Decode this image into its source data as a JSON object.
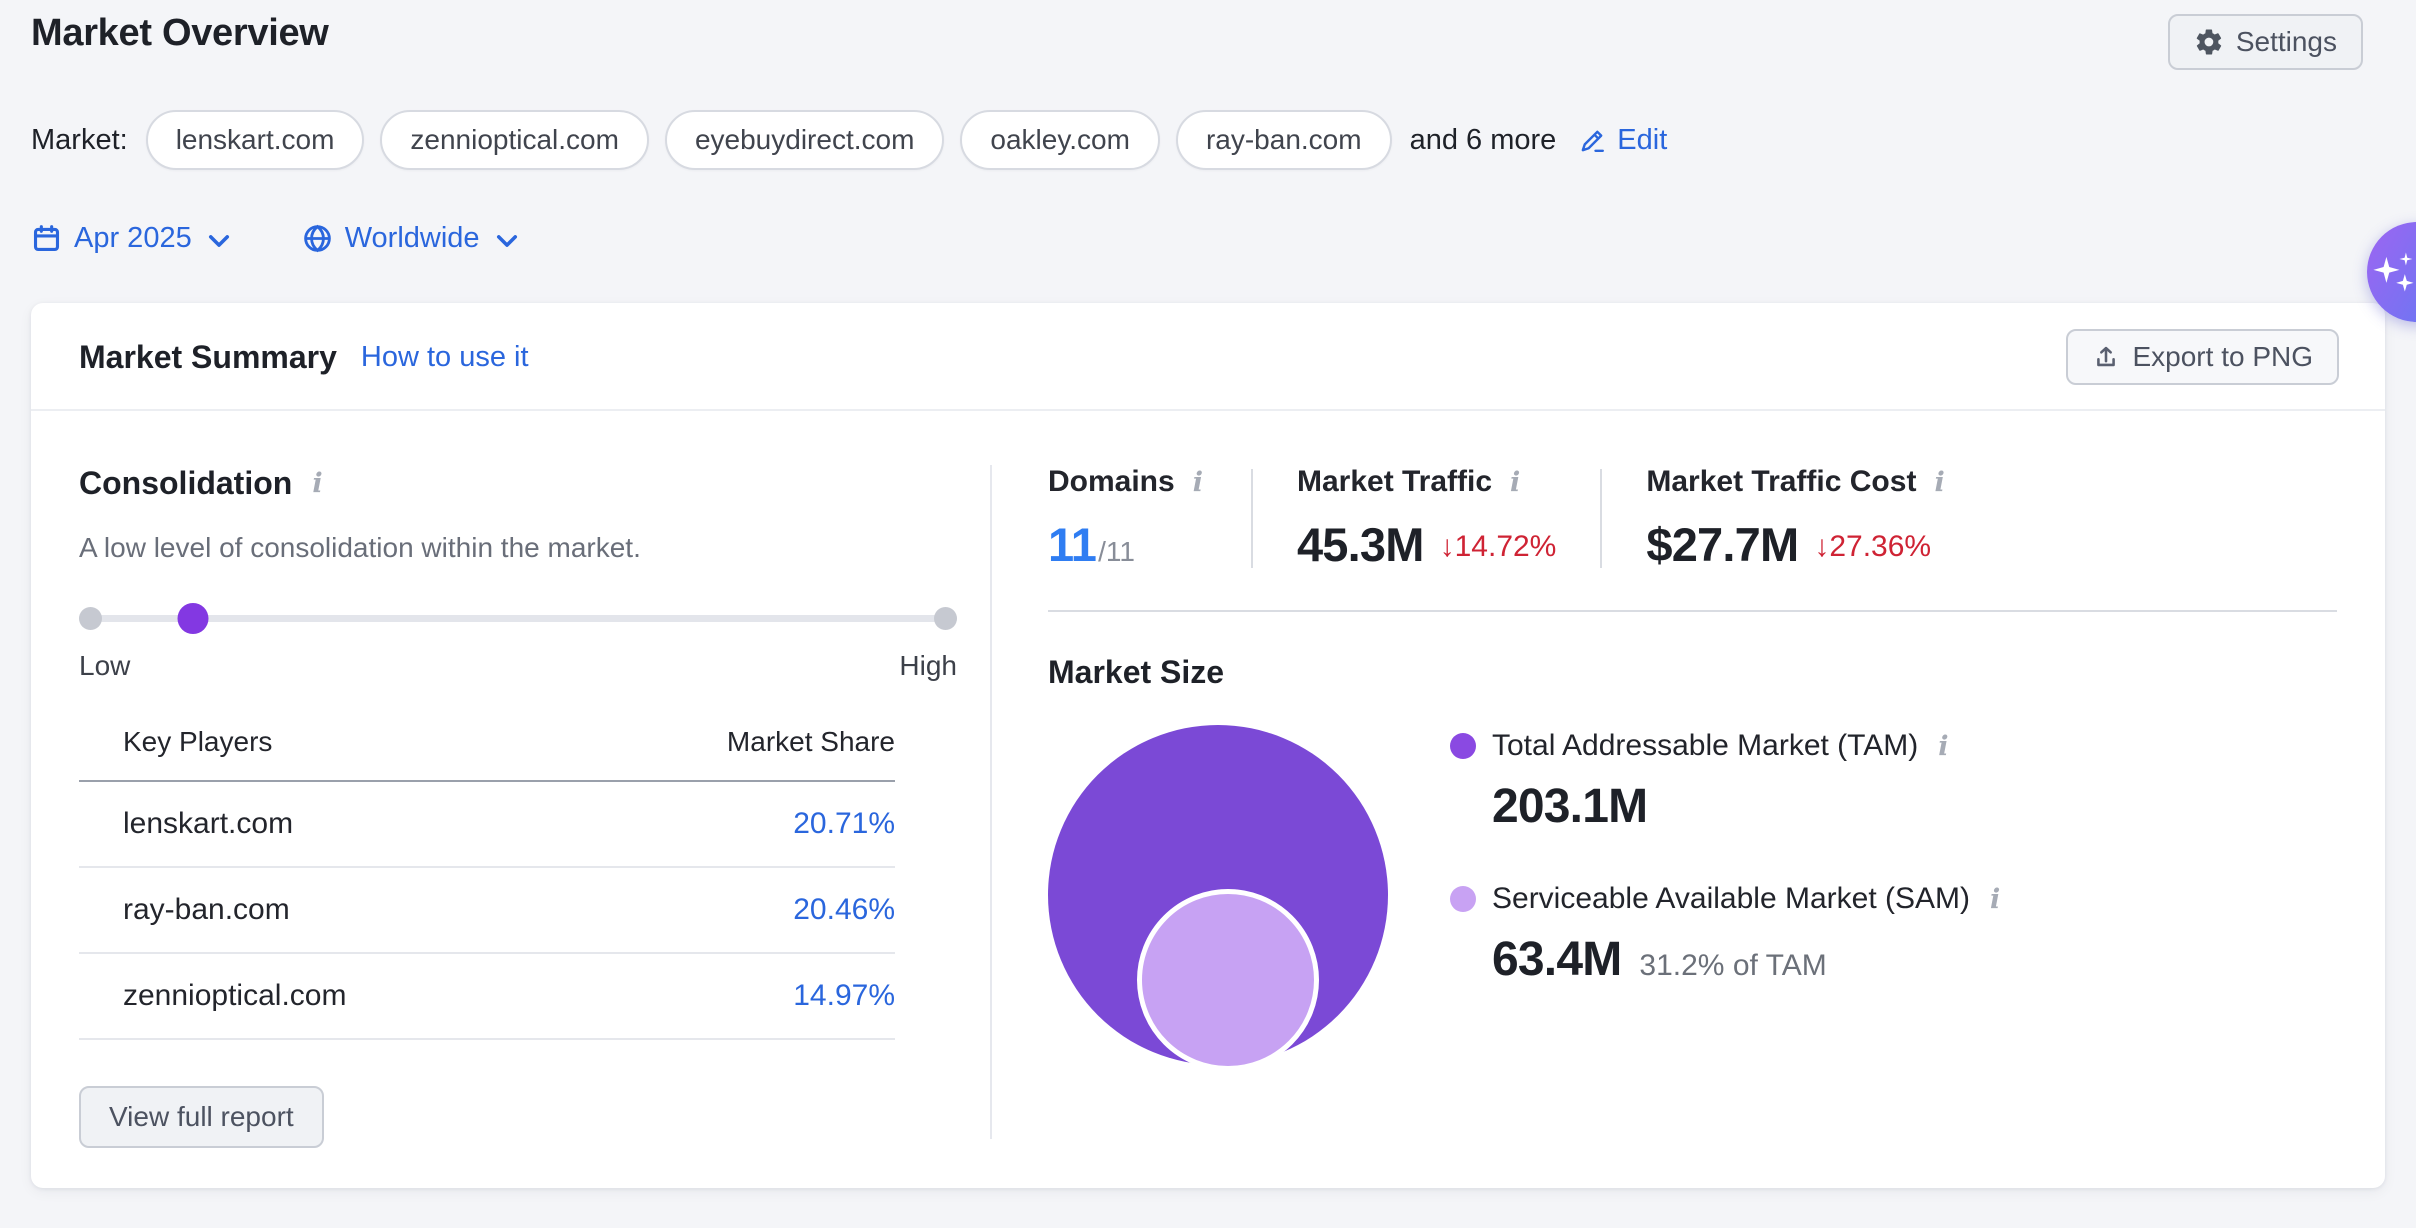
{
  "page": {
    "title": "Market Overview",
    "settings_label": "Settings"
  },
  "market_bar": {
    "label": "Market:",
    "domains": [
      "lenskart.com",
      "zennioptical.com",
      "eyebuydirect.com",
      "oakley.com",
      "ray-ban.com"
    ],
    "more_text": "and 6 more",
    "edit_label": "Edit"
  },
  "filters": {
    "date": "Apr 2025",
    "region": "Worldwide"
  },
  "summary_card": {
    "title": "Market Summary",
    "help_link": "How to use it",
    "export_label": "Export to PNG"
  },
  "consolidation": {
    "title": "Consolidation",
    "description": "A low level of consolidation within the market.",
    "slider": {
      "low_label": "Low",
      "high_label": "High",
      "level_percent": 13
    },
    "table": {
      "col_domain": "Key Players",
      "col_share": "Market Share",
      "rows": [
        {
          "domain": "lenskart.com",
          "share": "20.71%"
        },
        {
          "domain": "ray-ban.com",
          "share": "20.46%"
        },
        {
          "domain": "zennioptical.com",
          "share": "14.97%"
        }
      ]
    },
    "button_label": "View full report"
  },
  "stats": [
    {
      "label": "Domains",
      "value": "11",
      "suffix": "/11"
    },
    {
      "label": "Market Traffic",
      "value": "45.3M",
      "change": "↓14.72%"
    },
    {
      "label": "Market Traffic Cost",
      "value": "$27.7M",
      "change": "↓27.36%"
    }
  ],
  "market_size": {
    "title": "Market Size",
    "tam": {
      "label": "Total Addressable Market (TAM)",
      "value": "203.1M"
    },
    "sam": {
      "label": "Serviceable Available Market (SAM)",
      "value": "63.4M",
      "note": "31.2% of TAM"
    }
  },
  "colors": {
    "link_blue": "#2a66dd",
    "stat_blue": "#2f7df2",
    "negative_red": "#cf2334",
    "tam_purple": "#7b49d6",
    "sam_purple": "#c7a2f3",
    "slider_purple": "#8338e2"
  }
}
